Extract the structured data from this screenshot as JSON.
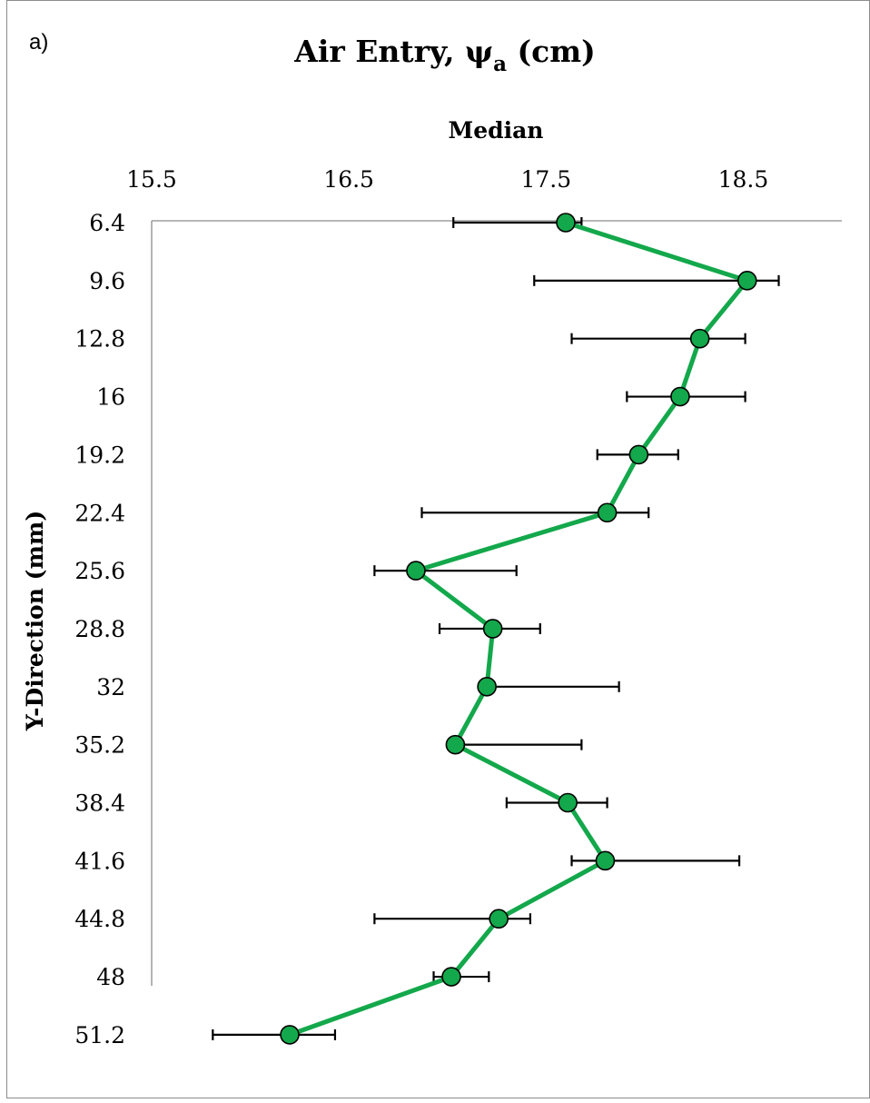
{
  "panel_label": "a)",
  "chart_data": {
    "type": "line",
    "title": "Air Entry, ψ",
    "title_subscript": "a",
    "title_suffix": " (cm)",
    "xlabel": "Median",
    "ylabel": "Y-Direction (mm)",
    "x_axis_position": "top",
    "xlim": [
      15.5,
      19.0
    ],
    "x_ticks": [
      "15.5",
      "16.5",
      "17.5",
      "18.5"
    ],
    "y_categories": [
      "6.4",
      "9.6",
      "12.8",
      "16",
      "19.2",
      "22.4",
      "25.6",
      "28.8",
      "32",
      "35.2",
      "38.4",
      "41.6",
      "44.8",
      "48",
      "51.2"
    ],
    "grid": false,
    "legend": "none",
    "series": [
      {
        "color": "#13a84b",
        "marker_color": "#13a84b",
        "values": [
          17.6,
          18.52,
          18.28,
          18.18,
          17.97,
          17.81,
          16.84,
          17.23,
          17.2,
          17.04,
          17.61,
          17.8,
          17.26,
          17.02,
          16.2
        ],
        "error_low": [
          17.03,
          17.44,
          17.63,
          17.91,
          17.76,
          16.87,
          16.63,
          16.96,
          17.2,
          17.04,
          17.3,
          17.63,
          16.63,
          16.93,
          15.81
        ],
        "error_high": [
          17.68,
          18.68,
          18.51,
          18.51,
          18.17,
          18.02,
          17.35,
          17.47,
          17.87,
          17.68,
          17.81,
          18.48,
          17.42,
          17.21,
          16.43
        ]
      }
    ]
  }
}
